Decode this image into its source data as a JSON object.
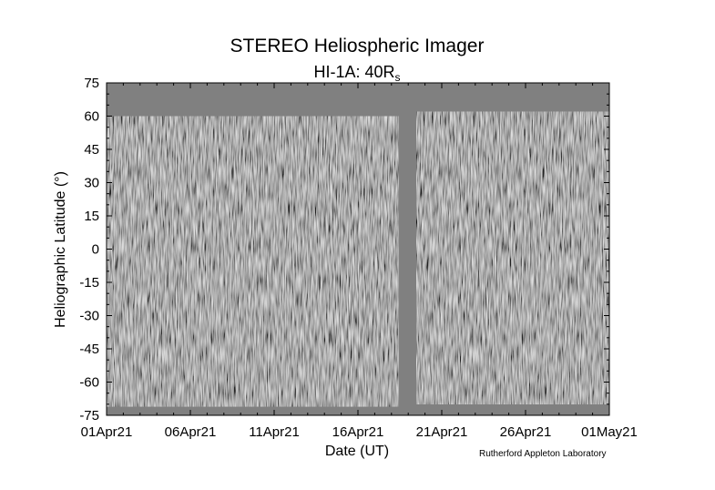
{
  "chart_data": {
    "type": "heatmap",
    "title": "STEREO Heliospheric Imager",
    "subtitle_main": "HI-1A: 40R",
    "subtitle_sub": "s",
    "xlabel": "Date (UT)",
    "ylabel": "Heliographic Latitude (°)",
    "credit": "Rutherford Appleton Laboratory",
    "x_ticks": [
      "01Apr21",
      "06Apr21",
      "11Apr21",
      "16Apr21",
      "21Apr21",
      "26Apr21",
      "01May21"
    ],
    "y_ticks": [
      75,
      60,
      45,
      30,
      15,
      0,
      -15,
      -30,
      -45,
      -60,
      -75
    ],
    "xlim_days": [
      0,
      30
    ],
    "ylim": [
      -75,
      75
    ],
    "data_segments": [
      {
        "start_day": 0,
        "end_day": 17.4,
        "lat_top": 60,
        "lat_bottom": -71
      },
      {
        "start_day": 18.5,
        "end_day": 30,
        "lat_top": 62,
        "lat_bottom": -70
      }
    ],
    "no_data_color": "#808080",
    "colormap": "grayscale difference"
  }
}
